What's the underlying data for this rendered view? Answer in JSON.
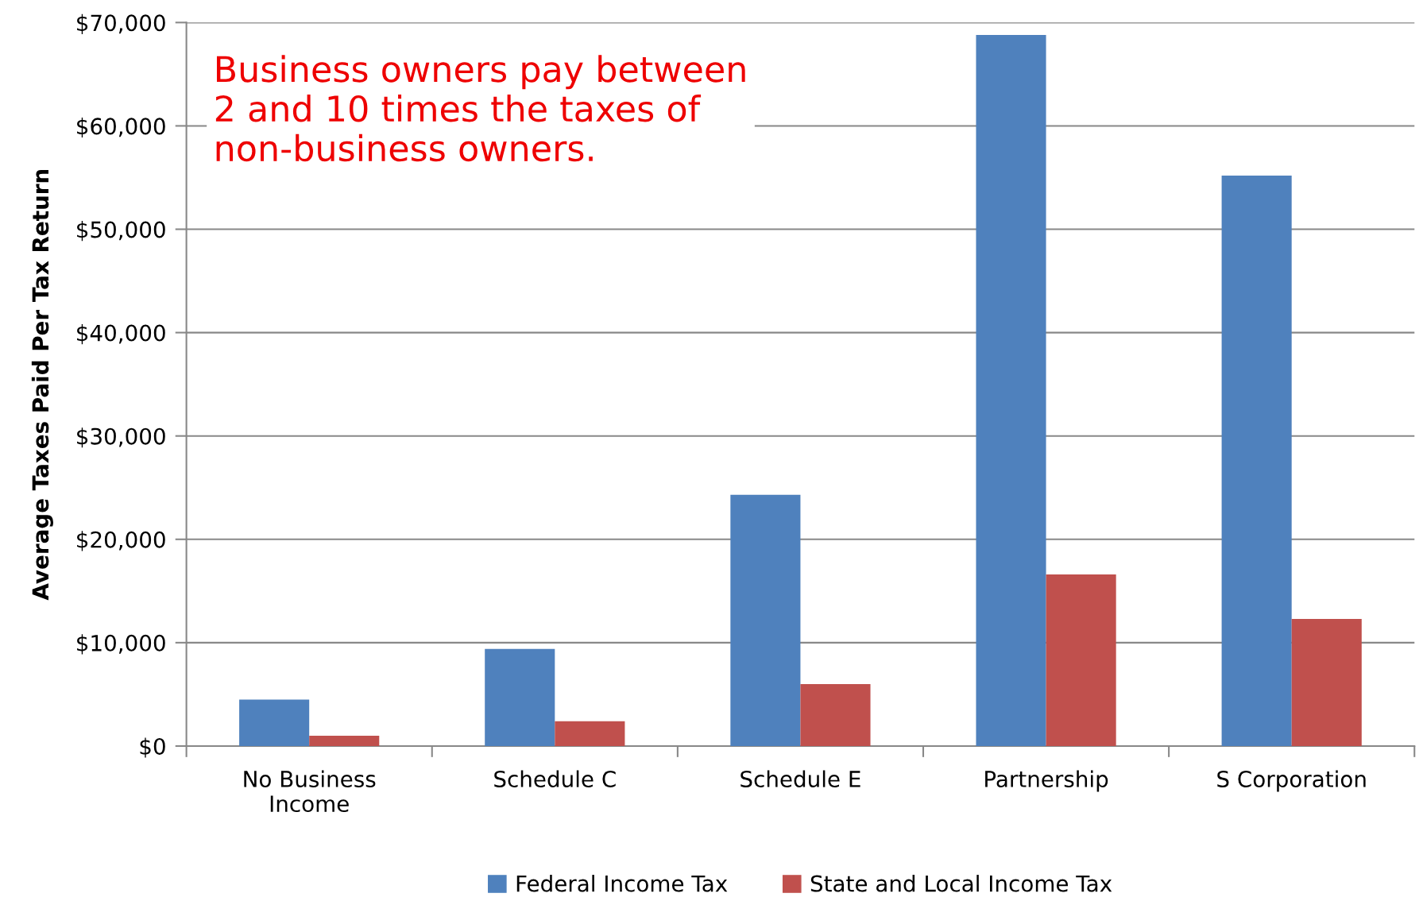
{
  "chart_data": {
    "type": "bar",
    "ylabel": "Average Taxes Paid Per Tax Return",
    "categories": [
      "No Business\nIncome",
      "Schedule C",
      "Schedule E",
      "Partnership",
      "S Corporation"
    ],
    "series": [
      {
        "name": "Federal Income Tax",
        "color": "#4f81bd",
        "values": [
          4500,
          9400,
          24300,
          68800,
          55200
        ]
      },
      {
        "name": "State and Local Income Tax",
        "color": "#c0504d",
        "values": [
          1000,
          2400,
          6000,
          16600,
          12300
        ]
      }
    ],
    "ylim": [
      0,
      70000
    ],
    "yticks": [
      {
        "value": 0,
        "label": "$0"
      },
      {
        "value": 10000,
        "label": "$10,000"
      },
      {
        "value": 20000,
        "label": "$20,000"
      },
      {
        "value": 30000,
        "label": "$30,000"
      },
      {
        "value": 40000,
        "label": "$40,000"
      },
      {
        "value": 50000,
        "label": "$50,000"
      },
      {
        "value": 60000,
        "label": "$60,000"
      },
      {
        "value": 70000,
        "label": "$70,000"
      }
    ],
    "grid": "y",
    "legend": "bottom",
    "annotations": [
      "Business owners pay between\n2 and 10 times the taxes of\nnon-business owners."
    ]
  }
}
